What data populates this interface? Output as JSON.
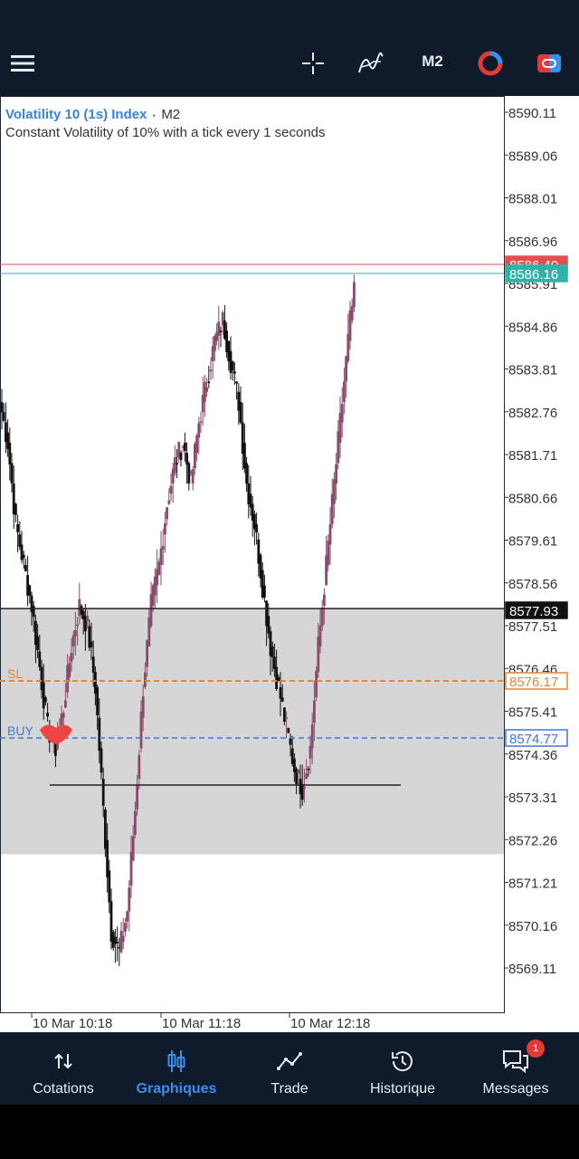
{
  "topbar": {
    "menu_icon": "hamburger-menu-icon",
    "crosshair_icon": "crosshair-icon",
    "indicators_icon": "indicators-icon",
    "timeframe": "M2",
    "account_icon": "account-icon",
    "one_click_icon": "one-click-trading-icon"
  },
  "chart": {
    "symbol": "Volatility 10 (1s) Index",
    "separator": "•",
    "timeframe": "M2",
    "description": "Constant Volatility of 10% with a tick every 1 seconds",
    "price_axis": [
      "8590.11",
      "8589.06",
      "8588.01",
      "8586.96",
      "8585.91",
      "8584.86",
      "8583.81",
      "8582.76",
      "8581.71",
      "8580.66",
      "8579.61",
      "8578.56",
      "8577.51",
      "8576.46",
      "8575.41",
      "8574.36",
      "8573.31",
      "8572.26",
      "8571.21",
      "8570.16",
      "8569.11"
    ],
    "time_axis": [
      "10 Mar 10:18",
      "10 Mar 11:18",
      "10 Mar 12:18"
    ],
    "price_tags": {
      "ask": "8586.40",
      "bid": "8586.16",
      "level": "8577.93",
      "sl": "8576.17",
      "buy": "8574.77"
    },
    "order_labels": {
      "sl": "SL",
      "buy": "BUY"
    },
    "colors": {
      "bull_candle": "#8a4a6a",
      "bear_candle": "#111111",
      "ask_line": "#e05050",
      "bid_line": "#2fb3a8",
      "sl_line": "#e0873a",
      "buy_line": "#3f77e0",
      "zone": "#d6d6d6"
    }
  },
  "bottom_nav": {
    "items": [
      {
        "label": "Cotations",
        "icon": "quotes-arrows-icon",
        "active": false
      },
      {
        "label": "Graphiques",
        "icon": "candlestick-chart-icon",
        "active": true
      },
      {
        "label": "Trade",
        "icon": "trade-line-icon",
        "active": false
      },
      {
        "label": "Historique",
        "icon": "history-clock-icon",
        "active": false
      },
      {
        "label": "Messages",
        "icon": "messages-chat-icon",
        "active": false,
        "badge": "1"
      }
    ]
  }
}
